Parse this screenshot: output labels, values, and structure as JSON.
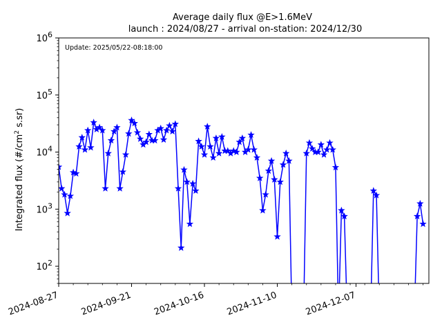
{
  "chart_data": {
    "type": "line",
    "title": "Average daily flux @E>1.6MeV",
    "subtitle": "launch : 2024/08/27 - arrival on-station: 2024/12/30",
    "annotation": "Update: 2025/05/22-08:18:00",
    "ylabel": "Integrated flux (#/cm² s.sr)",
    "xlabel": "",
    "yscale": "log",
    "ylim": [
      50,
      1000000
    ],
    "xlim": [
      "2024-08-27",
      "2025-01-01"
    ],
    "xticks": [
      "2024-08-27",
      "2024-09-21",
      "2024-10-16",
      "2024-11-10",
      "2024-12-07"
    ],
    "yticks": [
      {
        "value": 100,
        "base": "10",
        "exp": "2"
      },
      {
        "value": 1000,
        "base": "10",
        "exp": "3"
      },
      {
        "value": 10000,
        "base": "10",
        "exp": "4"
      },
      {
        "value": 100000,
        "base": "10",
        "exp": "5"
      },
      {
        "value": 1000000,
        "base": "10",
        "exp": "6"
      }
    ],
    "grid": false,
    "colors": {
      "series": "#0000ff",
      "axes": "#000000"
    },
    "series": [
      {
        "marker": "star",
        "points": [
          [
            "2024-08-27",
            5500
          ],
          [
            "2024-08-28",
            2300
          ],
          [
            "2024-08-29",
            1800
          ],
          [
            "2024-08-30",
            850
          ],
          [
            "2024-08-31",
            1700
          ],
          [
            "2024-09-01",
            4400
          ],
          [
            "2024-09-02",
            4200
          ],
          [
            "2024-09-03",
            12500
          ],
          [
            "2024-09-04",
            18000
          ],
          [
            "2024-09-05",
            11000
          ],
          [
            "2024-09-06",
            24000
          ],
          [
            "2024-09-07",
            12000
          ],
          [
            "2024-09-08",
            33000
          ],
          [
            "2024-09-09",
            25000
          ],
          [
            "2024-09-10",
            27000
          ],
          [
            "2024-09-11",
            24000
          ],
          [
            "2024-09-12",
            2300
          ],
          [
            "2024-09-13",
            9500
          ],
          [
            "2024-09-14",
            16000
          ],
          [
            "2024-09-15",
            23000
          ],
          [
            "2024-09-16",
            27000
          ],
          [
            "2024-09-17",
            2300
          ],
          [
            "2024-09-18",
            4500
          ],
          [
            "2024-09-19",
            9000
          ],
          [
            "2024-09-20",
            21000
          ],
          [
            "2024-09-21",
            36000
          ],
          [
            "2024-09-22",
            32000
          ],
          [
            "2024-09-23",
            22000
          ],
          [
            "2024-09-24",
            17000
          ],
          [
            "2024-09-25",
            13500
          ],
          [
            "2024-09-26",
            15000
          ],
          [
            "2024-09-27",
            20500
          ],
          [
            "2024-09-28",
            16000
          ],
          [
            "2024-09-29",
            16000
          ],
          [
            "2024-09-30",
            24000
          ],
          [
            "2024-10-01",
            26000
          ],
          [
            "2024-10-02",
            16500
          ],
          [
            "2024-10-03",
            24000
          ],
          [
            "2024-10-04",
            29000
          ],
          [
            "2024-10-05",
            23000
          ],
          [
            "2024-10-06",
            31000
          ],
          [
            "2024-10-07",
            2300
          ],
          [
            "2024-10-08",
            210
          ],
          [
            "2024-10-09",
            4900
          ],
          [
            "2024-10-10",
            3000
          ],
          [
            "2024-10-11",
            550
          ],
          [
            "2024-10-12",
            2800
          ],
          [
            "2024-10-13",
            2100
          ],
          [
            "2024-10-14",
            15500
          ],
          [
            "2024-10-15",
            12500
          ],
          [
            "2024-10-16",
            9000
          ],
          [
            "2024-10-17",
            28000
          ],
          [
            "2024-10-18",
            12500
          ],
          [
            "2024-10-19",
            8000
          ],
          [
            "2024-10-20",
            17500
          ],
          [
            "2024-10-21",
            9500
          ],
          [
            "2024-10-22",
            18500
          ],
          [
            "2024-10-23",
            10500
          ],
          [
            "2024-10-24",
            10500
          ],
          [
            "2024-10-25",
            9500
          ],
          [
            "2024-10-26",
            10500
          ],
          [
            "2024-10-27",
            10000
          ],
          [
            "2024-10-28",
            15000
          ],
          [
            "2024-10-29",
            17500
          ],
          [
            "2024-10-30",
            10000
          ],
          [
            "2024-10-31",
            11000
          ],
          [
            "2024-11-01",
            20000
          ],
          [
            "2024-11-02",
            11000
          ],
          [
            "2024-11-03",
            8000
          ],
          [
            "2024-11-04",
            3500
          ],
          [
            "2024-11-05",
            950
          ],
          [
            "2024-11-06",
            1800
          ],
          [
            "2024-11-07",
            4700
          ],
          [
            "2024-11-08",
            7000
          ],
          [
            "2024-11-09",
            3300
          ],
          [
            "2024-11-10",
            330
          ],
          [
            "2024-11-11",
            3000
          ],
          [
            "2024-11-12",
            6000
          ],
          [
            "2024-11-13",
            9500
          ],
          [
            "2024-11-14",
            7000
          ],
          [
            "2024-11-15",
            null
          ],
          [
            "2024-11-16",
            null
          ],
          [
            "2024-11-17",
            null
          ],
          [
            "2024-11-18",
            null
          ],
          [
            "2024-11-19",
            null
          ],
          [
            "2024-11-20",
            9500
          ],
          [
            "2024-11-21",
            14500
          ],
          [
            "2024-11-22",
            11500
          ],
          [
            "2024-11-23",
            10000
          ],
          [
            "2024-11-24",
            10000
          ],
          [
            "2024-11-25",
            13500
          ],
          [
            "2024-11-26",
            9000
          ],
          [
            "2024-11-27",
            11000
          ],
          [
            "2024-11-28",
            14500
          ],
          [
            "2024-11-29",
            11000
          ],
          [
            "2024-11-30",
            5400
          ],
          [
            "2024-12-01",
            null
          ],
          [
            "2024-12-02",
            950
          ],
          [
            "2024-12-03",
            750
          ],
          [
            "2024-12-04",
            null
          ],
          [
            "2024-12-12",
            null
          ],
          [
            "2024-12-13",
            2100
          ],
          [
            "2024-12-14",
            1750
          ],
          [
            "2024-12-15",
            null
          ],
          [
            "2024-12-27",
            null
          ],
          [
            "2024-12-28",
            750
          ],
          [
            "2024-12-29",
            1250
          ],
          [
            "2024-12-30",
            550
          ]
        ]
      }
    ]
  }
}
